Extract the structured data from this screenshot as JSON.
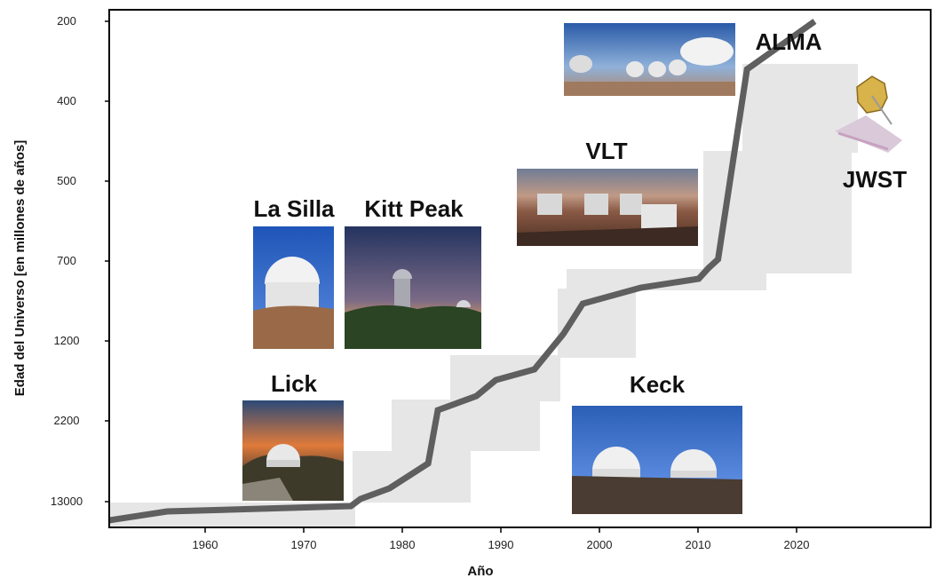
{
  "chart_data": {
    "type": "line",
    "xlabel": "Año",
    "ylabel": "Edad del Universo [en millones de años]",
    "xlim": [
      1950,
      2035
    ],
    "x_ticks": [
      "1960",
      "1970",
      "1980",
      "1990",
      "2000",
      "2010",
      "2020"
    ],
    "y_ticks": [
      "200",
      "400",
      "500",
      "700",
      "1200",
      "2200",
      "13000"
    ],
    "grid": false,
    "series": [
      {
        "values": [
          {
            "x": 1950,
            "y": "13000"
          },
          {
            "x": 1956,
            "y": "13000"
          },
          {
            "x": 1956,
            "y": "13000"
          },
          {
            "x": 1975,
            "y": "13000"
          },
          {
            "x": 1975,
            "y": "13000"
          },
          {
            "x": 1976,
            "y": "13000"
          },
          {
            "x": 1976,
            "y": "13000"
          },
          {
            "x": 1979,
            "y": "13000"
          },
          {
            "x": 1979,
            "y": "2200"
          },
          {
            "x": 1983,
            "y": "2200"
          },
          {
            "x": 1983,
            "y": "2200"
          },
          {
            "x": 1984,
            "y": "2200"
          },
          {
            "x": 1984,
            "y": "1200"
          },
          {
            "x": 1988,
            "y": "1200"
          },
          {
            "x": 1988,
            "y": "1200"
          },
          {
            "x": 1990,
            "y": "1200"
          },
          {
            "x": 1990,
            "y": "1200"
          },
          {
            "x": 1994,
            "y": "1200"
          },
          {
            "x": 1994,
            "y": "1200"
          },
          {
            "x": 1997,
            "y": "1200"
          },
          {
            "x": 1997,
            "y": "1200"
          },
          {
            "x": 1999,
            "y": "1200"
          },
          {
            "x": 1999,
            "y": "700"
          },
          {
            "x": 2005,
            "y": "700"
          },
          {
            "x": 2005,
            "y": "700"
          },
          {
            "x": 2011,
            "y": "700"
          },
          {
            "x": 2011,
            "y": "700"
          },
          {
            "x": 2012,
            "y": "700"
          },
          {
            "x": 2012,
            "y": "700"
          },
          {
            "x": 2013,
            "y": "700"
          },
          {
            "x": 2013,
            "y": "700"
          },
          {
            "x": 2016,
            "y": "700"
          },
          {
            "x": 2016,
            "y": "200"
          },
          {
            "x": 2023,
            "y": "200"
          }
        ]
      }
    ],
    "annotations": [
      "Lick",
      "La Silla",
      "Kitt Peak",
      "VLT",
      "Keck",
      "ALMA",
      "JWST"
    ]
  },
  "colors": {
    "line": "#5f5f5f",
    "band": "#e6e6e6",
    "frame": "#000000",
    "text": "#111111"
  },
  "images": [
    {
      "label": "Lick",
      "icon": "observatory-sunset-photo"
    },
    {
      "label": "La Silla",
      "icon": "observatory-dome-photo"
    },
    {
      "label": "Kitt Peak",
      "icon": "observatory-night-photo"
    },
    {
      "label": "VLT",
      "icon": "vlt-telescopes-photo"
    },
    {
      "label": "Keck",
      "icon": "keck-domes-photo"
    },
    {
      "label": "ALMA",
      "icon": "alma-antennas-photo"
    },
    {
      "label": "JWST",
      "icon": "space-telescope-photo"
    }
  ]
}
